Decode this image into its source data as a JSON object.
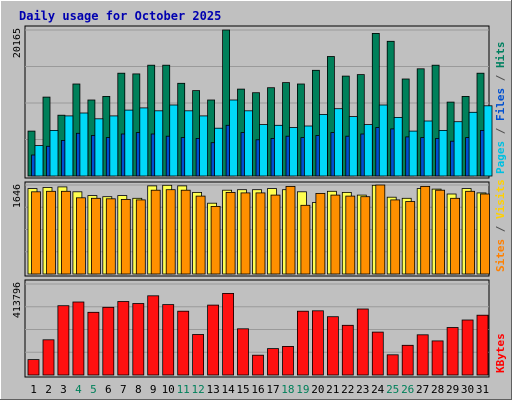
{
  "chart_data": {
    "type": "bar",
    "title": "Daily usage for October 2025",
    "categories": [
      "1",
      "2",
      "3",
      "4",
      "5",
      "6",
      "7",
      "8",
      "9",
      "10",
      "11",
      "12",
      "13",
      "14",
      "15",
      "16",
      "17",
      "18",
      "19",
      "20",
      "21",
      "22",
      "23",
      "24",
      "25",
      "26",
      "27",
      "28",
      "29",
      "30",
      "31"
    ],
    "weekend_days": [
      4,
      5,
      11,
      12,
      18,
      19,
      25,
      26
    ],
    "panels": [
      {
        "name": "hits-files-pages",
        "ymax_label": "20165",
        "ymax": 20165,
        "ylabel_parts": [
          {
            "text": "Pages",
            "color": "#00c0e0"
          },
          {
            "text": " / ",
            "color": "#505050"
          },
          {
            "text": "Files",
            "color": "#0050d0"
          },
          {
            "text": " / ",
            "color": "#505050"
          },
          {
            "text": "Hits",
            "color": "#008060"
          }
        ],
        "series": [
          {
            "name": "Hits",
            "color": "#00805a",
            "values": [
              6200,
              10900,
              8400,
              12700,
              10500,
              11000,
              14200,
              14100,
              15300,
              15300,
              12800,
              11800,
              10500,
              20165,
              12000,
              11500,
              12200,
              12900,
              12700,
              14600,
              16500,
              13800,
              14000,
              19700,
              18600,
              13400,
              14800,
              15300,
              10200,
              11000,
              14200
            ]
          },
          {
            "name": "Files",
            "color": "#0050d0",
            "values": [
              2900,
              4100,
              4900,
              5900,
              5600,
              5300,
              5800,
              6000,
              5800,
              5500,
              5300,
              5200,
              4600,
              7000,
              6000,
              5000,
              5200,
              5500,
              5300,
              5600,
              6000,
              5500,
              5800,
              6700,
              6500,
              5400,
              5300,
              5200,
              4800,
              5300,
              6300
            ]
          },
          {
            "name": "Pages",
            "color": "#00d8f8",
            "values": [
              4200,
              6300,
              8300,
              8700,
              7900,
              8300,
              9100,
              9400,
              9000,
              9800,
              9000,
              8300,
              6600,
              10500,
              9000,
              7100,
              7000,
              6700,
              6900,
              8500,
              9300,
              8200,
              7100,
              9800,
              8100,
              6200,
              7600,
              6300,
              7500,
              8800,
              9700
            ]
          }
        ]
      },
      {
        "name": "visits-sites",
        "ymax_label": "1646",
        "ymax": 1646,
        "ylabel_parts": [
          {
            "text": "Sites",
            "color": "#ff8000"
          },
          {
            "text": " / ",
            "color": "#505050"
          },
          {
            "text": "Visits",
            "color": "#ffd000"
          }
        ],
        "series": [
          {
            "name": "Visits",
            "color": "#ffff50",
            "values": [
              1580,
              1600,
              1610,
              1520,
              1450,
              1430,
              1450,
              1400,
              1630,
              1640,
              1630,
              1510,
              1310,
              1550,
              1560,
              1560,
              1580,
              1560,
              1520,
              1320,
              1530,
              1510,
              1460,
              1640,
              1420,
              1400,
              1580,
              1570,
              1480,
              1580,
              1500
            ]
          },
          {
            "name": "Sites",
            "color": "#ff9000",
            "values": [
              1520,
              1530,
              1530,
              1410,
              1400,
              1390,
              1380,
              1370,
              1550,
              1560,
              1550,
              1440,
              1250,
              1510,
              1500,
              1500,
              1460,
              1620,
              1270,
              1490,
              1460,
              1440,
              1430,
              1646,
              1370,
              1340,
              1620,
              1550,
              1400,
              1530,
              1480
            ]
          }
        ]
      },
      {
        "name": "kbytes",
        "ymax_label": "413796",
        "ymax": 413796,
        "ylabel_parts": [
          {
            "text": "KBytes",
            "color": "#ff0000"
          }
        ],
        "series": [
          {
            "name": "KBytes",
            "color": "#ff1010",
            "values": [
              70000,
              160000,
              315000,
              332000,
              285000,
              308000,
              334000,
              325000,
              360000,
              320000,
              290000,
              184000,
              318000,
              371000,
              210000,
              90000,
              120000,
              130000,
              290000,
              292000,
              265000,
              226000,
              300000,
              195000,
              92000,
              135000,
              183000,
              155000,
              216000,
              250000,
              272000
            ]
          }
        ]
      }
    ]
  }
}
